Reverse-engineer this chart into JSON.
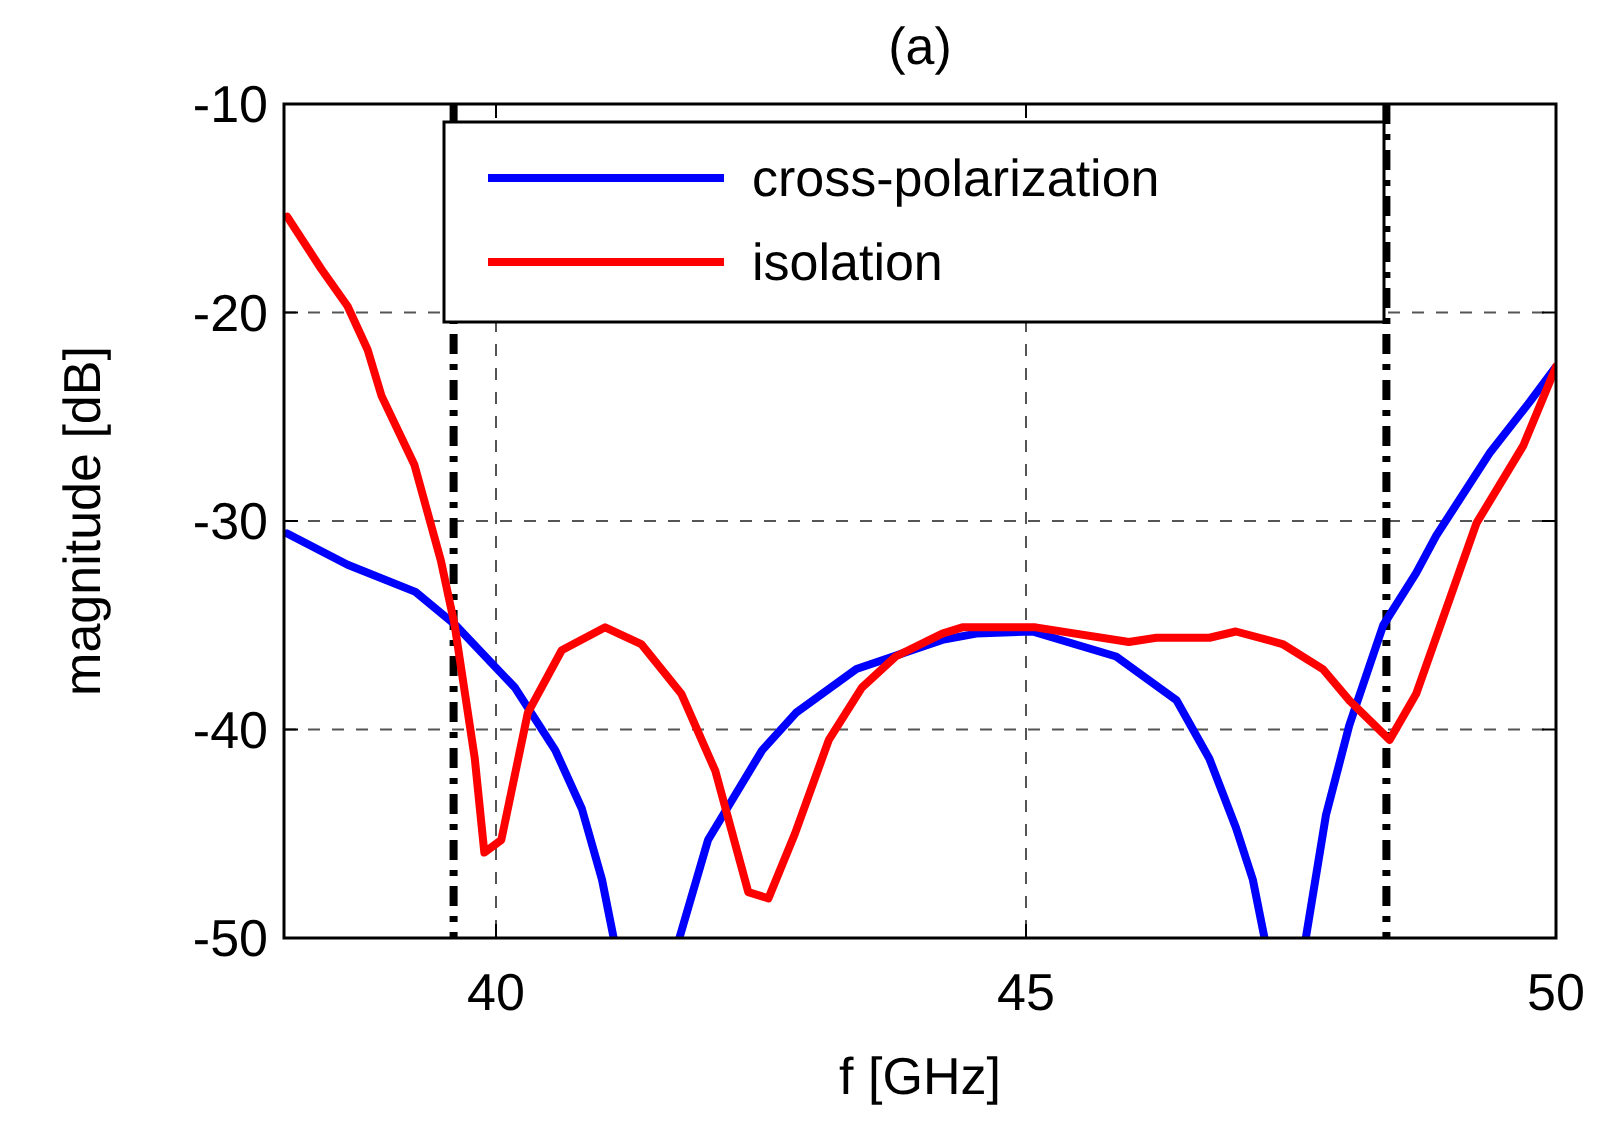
{
  "chart_data": {
    "type": "line",
    "title": "(a)",
    "xlabel": "f [GHz]",
    "ylabel": "magnitude [dB]",
    "xlim": [
      38,
      50
    ],
    "xticks": [
      40,
      45,
      50
    ],
    "ylim": [
      -50,
      -10
    ],
    "yticks": [
      -50,
      -40,
      -30,
      -20,
      -10
    ],
    "grid": true,
    "legend": "top",
    "line_style": "solid",
    "marker": "none",
    "ref_lines": [
      {
        "axis": "x",
        "value": 39.6,
        "color": "#000000",
        "line_style": "dashdot"
      },
      {
        "axis": "x",
        "value": 48.4,
        "color": "#000000",
        "line_style": "dashdot"
      }
    ],
    "series": [
      {
        "name": "cross-polarization",
        "color": "#0000ff",
        "x": [
          38.03,
          38.6,
          39.24,
          39.62,
          40.18,
          40.56,
          40.81,
          41.0,
          41.11,
          41.4,
          41.73,
          42.0,
          42.51,
          42.83,
          43.4,
          44.21,
          44.53,
          45.06,
          45.85,
          46.42,
          46.73,
          46.98,
          47.14,
          47.25,
          47.45,
          47.64,
          47.83,
          48.05,
          48.37,
          48.68,
          48.87,
          49.38,
          49.75,
          50
        ],
        "values": [
          -30.6,
          -32.1,
          -33.4,
          -35.0,
          -38.0,
          -41.0,
          -43.8,
          -47.2,
          -50,
          null,
          -50,
          -45.3,
          -41.0,
          -39.2,
          -37.1,
          -35.7,
          -35.4,
          -35.3,
          -36.5,
          -38.6,
          -41.4,
          -44.7,
          -47.2,
          -50,
          null,
          -50,
          -44.1,
          -39.8,
          -35.0,
          -32.5,
          -30.7,
          -26.7,
          -24.3,
          -22.6
        ]
      },
      {
        "name": "isolation",
        "color": "#ff0000",
        "x": [
          38.03,
          38.35,
          38.6,
          38.79,
          38.92,
          39.23,
          39.48,
          39.61,
          39.8,
          39.89,
          40.05,
          40.3,
          40.62,
          41.03,
          41.37,
          41.75,
          42.07,
          42.38,
          42.57,
          42.82,
          43.14,
          43.45,
          43.77,
          44.21,
          44.4,
          45.09,
          45.97,
          46.23,
          46.73,
          46.98,
          47.42,
          47.8,
          48.05,
          48.43,
          48.68,
          49.0,
          49.25,
          49.69,
          50
        ],
        "values": [
          -15.4,
          -17.9,
          -19.7,
          -21.8,
          -24.0,
          -27.3,
          -31.9,
          -35.0,
          -41.4,
          -45.9,
          -45.3,
          -39.2,
          -36.2,
          -35.1,
          -35.9,
          -38.3,
          -42.0,
          -47.8,
          -48.1,
          -45.0,
          -40.5,
          -38.0,
          -36.5,
          -35.4,
          -35.1,
          -35.1,
          -35.8,
          -35.6,
          -35.6,
          -35.3,
          -35.9,
          -37.1,
          -38.6,
          -40.5,
          -38.3,
          -33.7,
          -30.1,
          -26.4,
          -22.6
        ]
      }
    ]
  }
}
